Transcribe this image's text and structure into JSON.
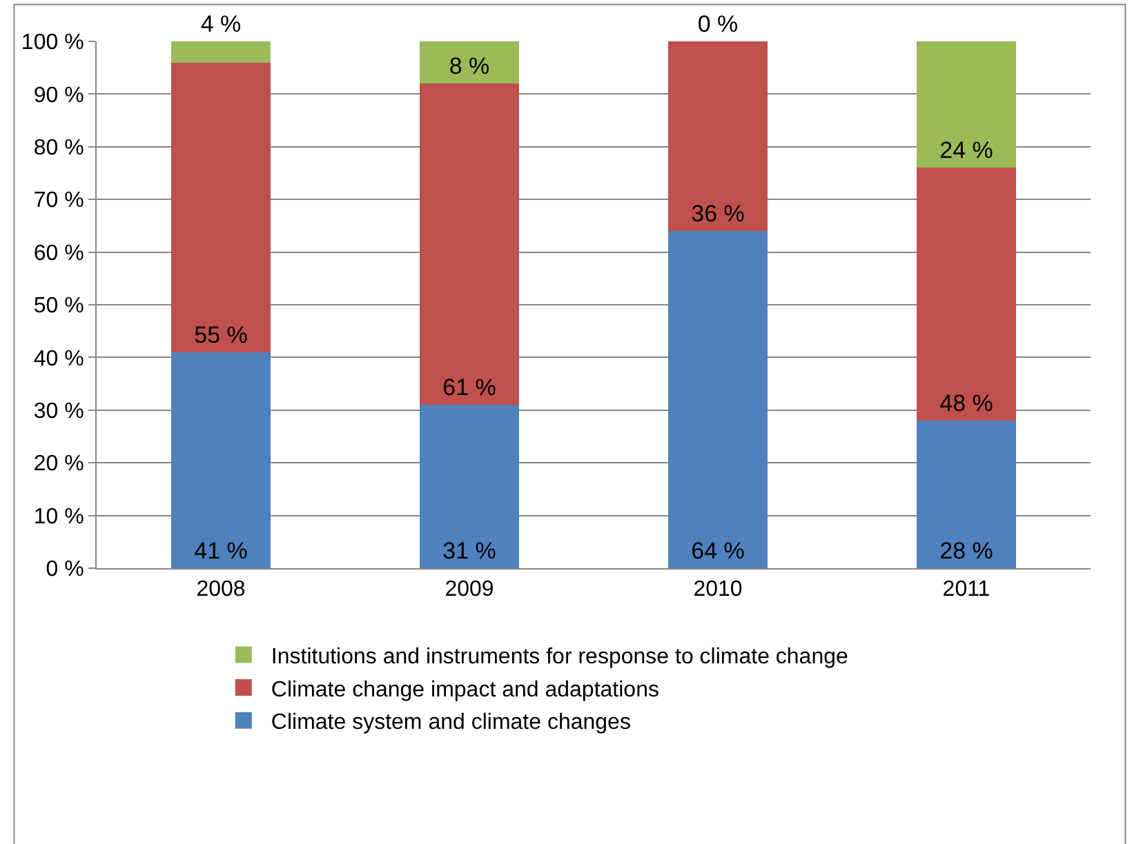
{
  "chart_data": {
    "type": "bar",
    "stacked": true,
    "categories": [
      "2008",
      "2009",
      "2010",
      "2011"
    ],
    "series": [
      {
        "name": "Climate system and climate changes",
        "color": "#4f81bd",
        "values": [
          41,
          31,
          64,
          28
        ],
        "value_labels": [
          "41 %",
          "31 %",
          "64 %",
          "28 %"
        ]
      },
      {
        "name": "Climate change impact and adaptations",
        "color": "#c0504d",
        "values": [
          55,
          61,
          36,
          48
        ],
        "value_labels": [
          "55 %",
          "61 %",
          "36 %",
          "48 %"
        ]
      },
      {
        "name": "Institutions and instruments for response to climate change",
        "color": "#9bbb59",
        "values": [
          4,
          8,
          0,
          24
        ],
        "value_labels": [
          "4 %",
          "8 %",
          "0 %",
          "24 %"
        ]
      }
    ],
    "ylim": [
      0,
      100
    ],
    "yticks": [
      {
        "value": 0,
        "label": "0 %"
      },
      {
        "value": 10,
        "label": "10 %"
      },
      {
        "value": 20,
        "label": "20 %"
      },
      {
        "value": 30,
        "label": "30 %"
      },
      {
        "value": 40,
        "label": "40 %"
      },
      {
        "value": 50,
        "label": "50 %"
      },
      {
        "value": 60,
        "label": "60 %"
      },
      {
        "value": 70,
        "label": "70 %"
      },
      {
        "value": 80,
        "label": "80 %"
      },
      {
        "value": 90,
        "label": "90 %"
      },
      {
        "value": 100,
        "label": "100 %"
      }
    ],
    "grid": "y",
    "legend": "bottom"
  }
}
